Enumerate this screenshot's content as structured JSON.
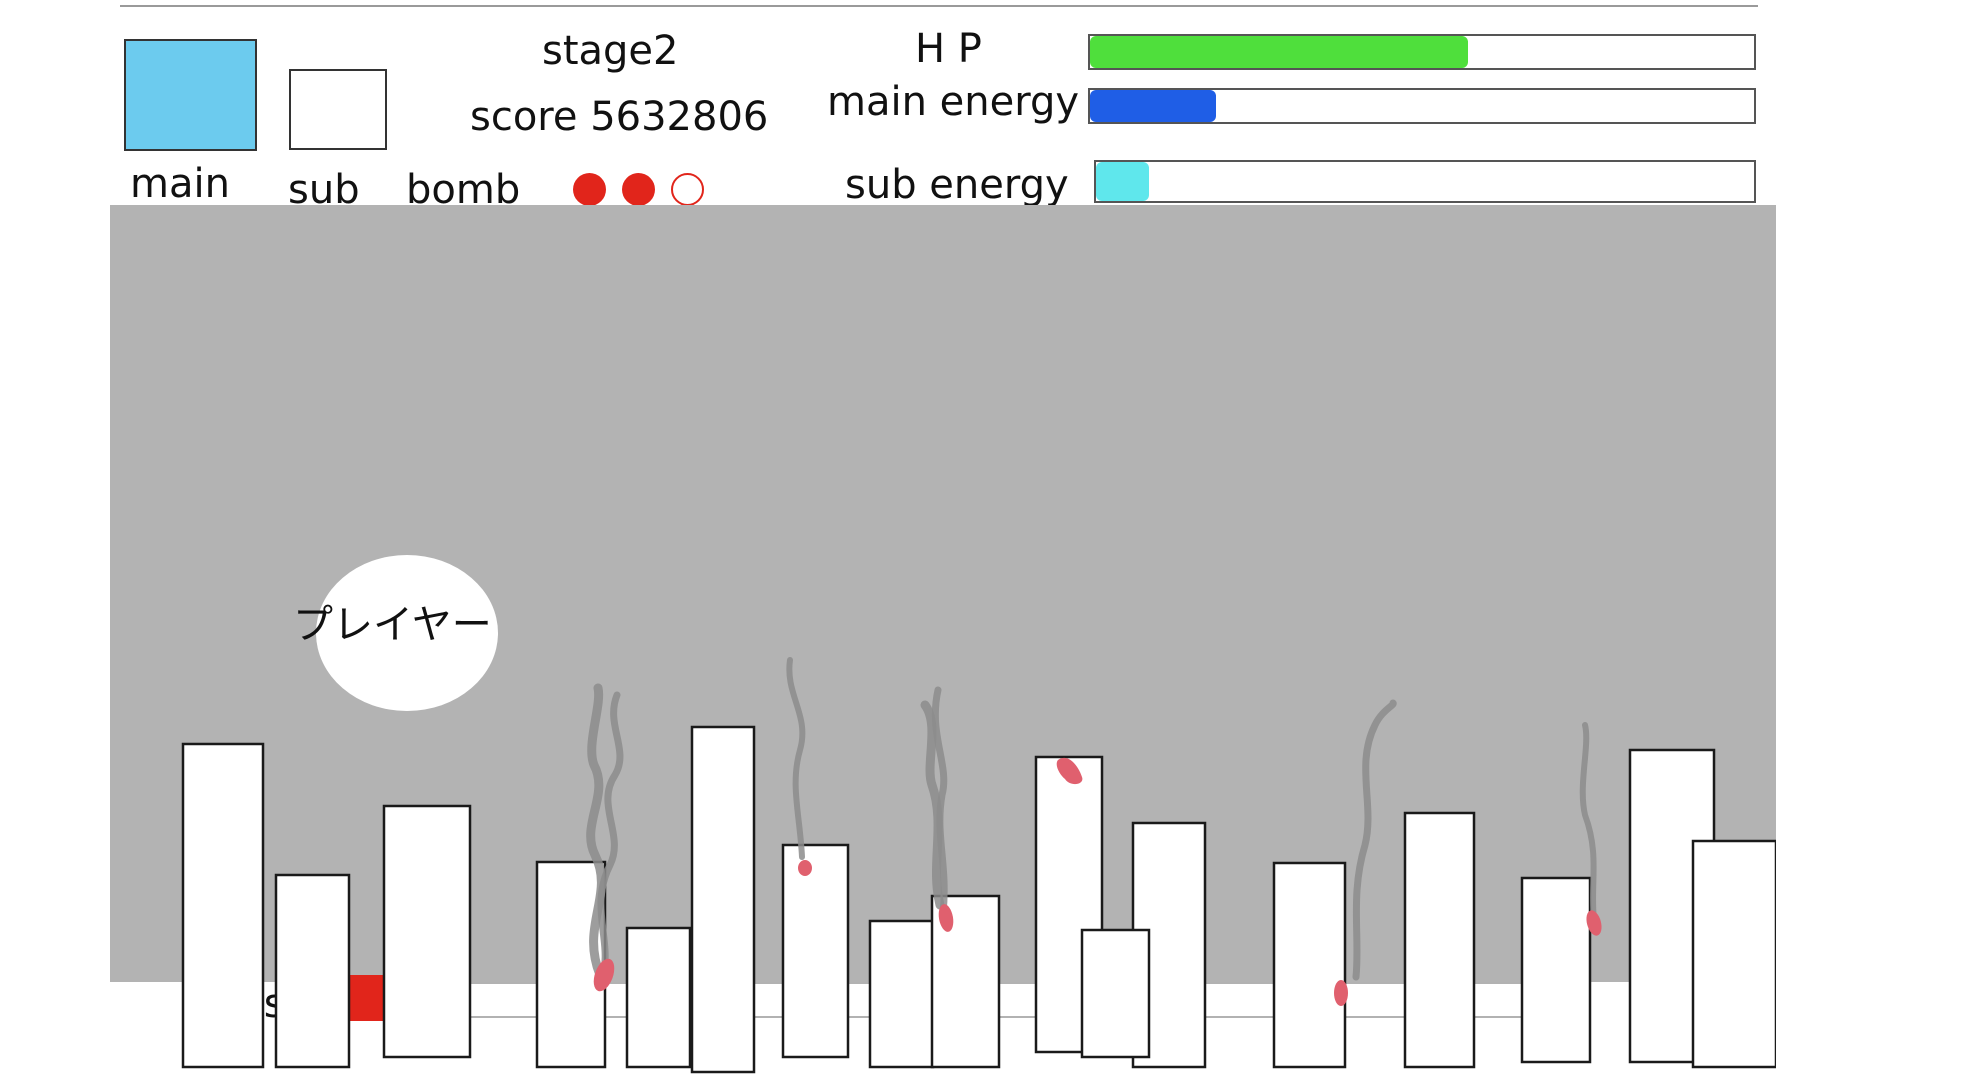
{
  "hud": {
    "stage": "stage2",
    "score": "score 5632806",
    "weapons": {
      "main_label": "main",
      "sub_label": "sub",
      "main_color": "#6ccbee",
      "sub_color": "#ffffff"
    },
    "bomb": {
      "label": "bomb",
      "total": 3,
      "remaining": 2,
      "color": "#e1251b"
    },
    "gauges": [
      {
        "key": "hp",
        "label": "H P",
        "fraction": 0.57,
        "color": "#4fdf3c"
      },
      {
        "key": "main-energy",
        "label": "main energy",
        "fraction": 0.19,
        "color": "#1f5ee6"
      },
      {
        "key": "sub-energy",
        "label": "sub energy",
        "fraction": 0.08,
        "color": "#5fe7ec"
      }
    ]
  },
  "field": {
    "background_color": "#b3b3b3",
    "player_label": "プレイヤー",
    "boss_label": "boss",
    "boss_hp_fraction": 0.12,
    "boss_color": "#e1251b",
    "fire_color": "#e0606e",
    "smoke_color": "#8c8c8c"
  }
}
